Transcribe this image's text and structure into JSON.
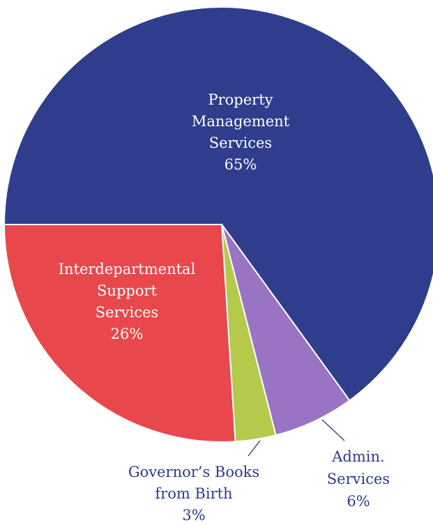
{
  "chart_data": {
    "type": "pie",
    "slices": [
      {
        "name": "Property Management Services",
        "value": 65,
        "color": "#2f3d8c",
        "label_lines": [
          "Property",
          "Management",
          "Services",
          "65%"
        ],
        "label_position": "inside"
      },
      {
        "name": "Admin. Services",
        "value": 6,
        "color": "#9a74c4",
        "label_lines": [
          "Admin.",
          "Services",
          "6%"
        ],
        "label_position": "outside"
      },
      {
        "name": "Governor’s Books from Birth",
        "value": 3,
        "color": "#b5c94a",
        "label_lines": [
          "Governor’s Books",
          "from Birth",
          "3%"
        ],
        "label_position": "outside"
      },
      {
        "name": "Interdepartmental Support Services",
        "value": 26,
        "color": "#e8484c",
        "label_lines": [
          "Interdepartmental",
          "Support",
          "Services",
          "26%"
        ],
        "label_position": "inside"
      }
    ],
    "title": "",
    "legend": "none"
  }
}
